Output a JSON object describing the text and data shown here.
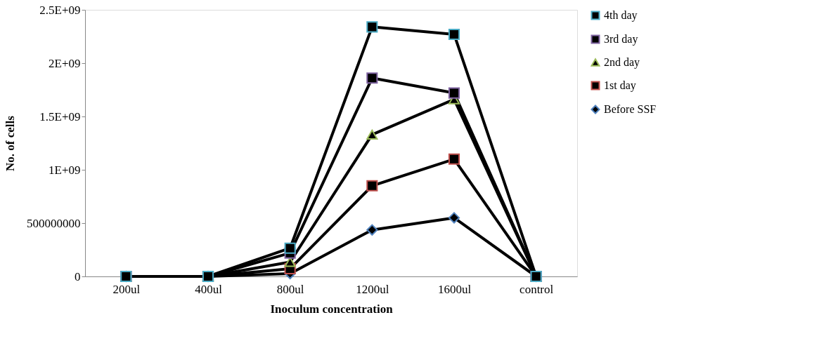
{
  "chart_data": {
    "type": "line",
    "xlabel": "Inoculum concentration",
    "ylabel": "No. of cells",
    "categories": [
      "200ul",
      "400ul",
      "800ul",
      "1200ul",
      "1600ul",
      "control"
    ],
    "series": [
      {
        "name": "4th day",
        "color": "#4bacc6",
        "marker": "square",
        "values": [
          0,
          0,
          265000000,
          2340000000,
          2270000000,
          0
        ]
      },
      {
        "name": "3rd day",
        "color": "#8064a2",
        "marker": "square",
        "values": [
          0,
          0,
          220000000,
          1860000000,
          1720000000,
          0
        ]
      },
      {
        "name": "2nd day",
        "color": "#9bbb59",
        "marker": "triangle",
        "values": [
          0,
          0,
          135000000,
          1330000000,
          1660000000,
          0
        ]
      },
      {
        "name": "1st day",
        "color": "#c0504d",
        "marker": "square",
        "values": [
          0,
          0,
          73000000,
          850000000,
          1100000000,
          0
        ]
      },
      {
        "name": "Before SSF",
        "color": "#4f81bd",
        "marker": "diamond",
        "values": [
          0,
          0,
          27000000,
          436000000,
          550000000,
          0
        ]
      }
    ],
    "ylim": [
      0,
      2500000000
    ],
    "yticks": [
      0,
      500000000,
      {
        "value": 1000000000,
        "label": "1E+09"
      },
      {
        "value": 1500000000,
        "label": "1.5E+09"
      },
      {
        "value": 2000000000,
        "label": "2E+09"
      },
      {
        "value": 2500000000,
        "label": "2.5E+09"
      }
    ],
    "grid": false,
    "legend": "right",
    "line_style": "solid"
  }
}
